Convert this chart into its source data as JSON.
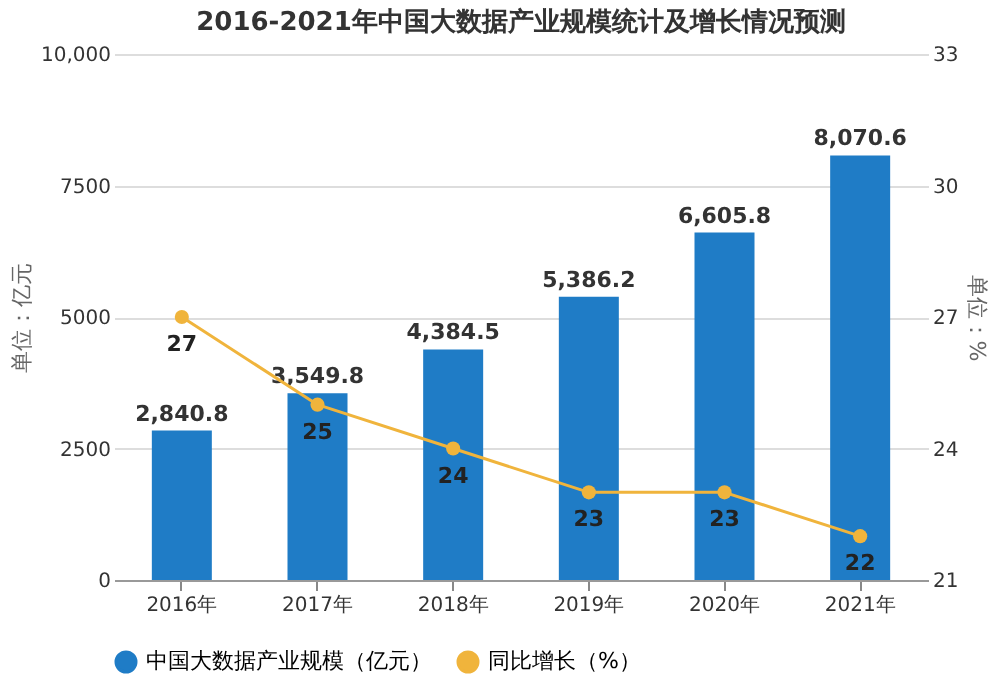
{
  "chart_data": {
    "type": "bar",
    "title": "2016-2021年中国大数据产业规模统计及增长情况预测",
    "categories": [
      "2016年",
      "2017年",
      "2018年",
      "2019年",
      "2020年",
      "2021年"
    ],
    "series": [
      {
        "name": "中国大数据产业规模（亿元）",
        "color": "#1f7cc6",
        "values": [
          2840.8,
          3549.8,
          4384.5,
          5386.2,
          6605.8,
          8070.6
        ],
        "value_labels": [
          "2,840.8",
          "3,549.8",
          "4,384.5",
          "5,386.2",
          "6,605.8",
          "8,070.6"
        ]
      },
      {
        "name": "同比增长（%）",
        "type": "line",
        "axis": "y2",
        "color": "#f0b43c",
        "values": [
          27,
          25,
          24,
          23,
          23,
          22
        ],
        "value_labels": [
          "27",
          "25",
          "24",
          "23",
          "23",
          "22"
        ]
      }
    ],
    "ylabel": "单位：亿元",
    "y2label": "单位：%",
    "ylim": [
      0,
      10000
    ],
    "yticks": [
      0,
      2500,
      5000,
      7500,
      {
        "value": 10000,
        "label": "10,000"
      }
    ],
    "y2lim": [
      21,
      33
    ],
    "y2ticks": [
      21,
      24,
      27,
      30,
      33
    ],
    "grid": "y",
    "legend": "bottom",
    "marker": "circle"
  }
}
